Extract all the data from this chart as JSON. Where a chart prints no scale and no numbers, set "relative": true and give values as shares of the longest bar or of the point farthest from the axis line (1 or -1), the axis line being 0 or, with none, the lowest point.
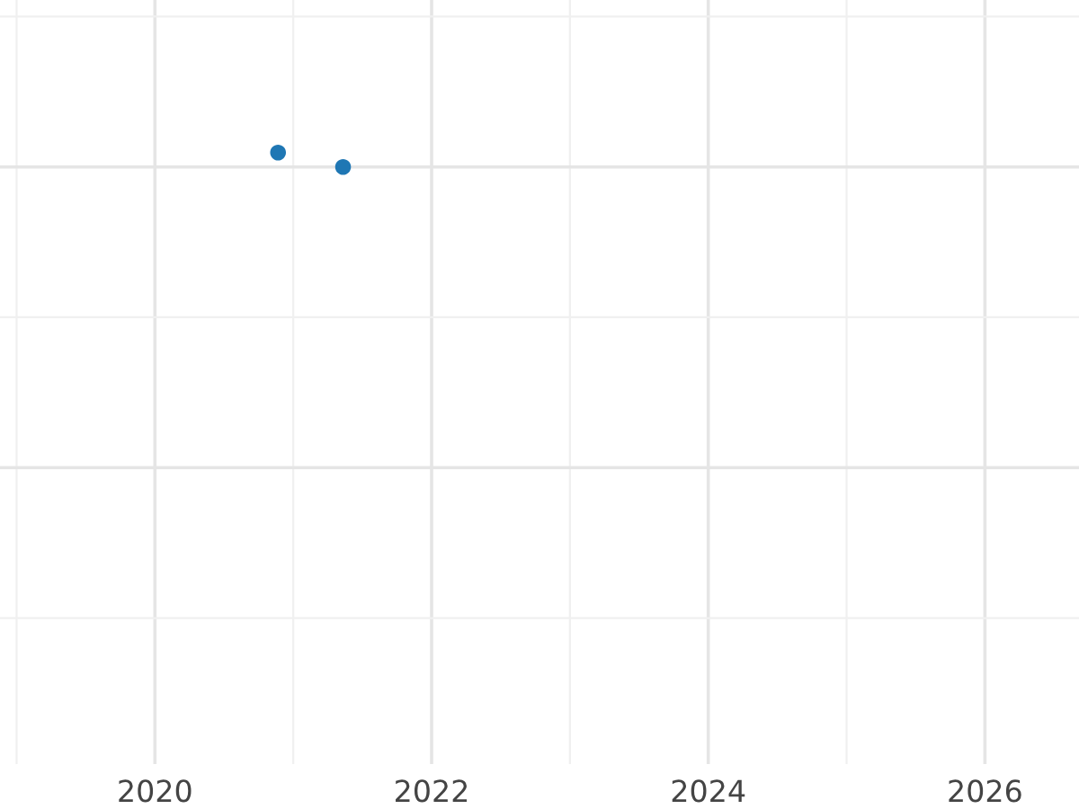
{
  "chart_data": {
    "type": "scatter",
    "x": [
      2020.89,
      2021.36
    ],
    "values": [
      1,
      0
    ],
    "relative": true,
    "color": "#1f77b4",
    "xlim": [
      2018.88,
      2026.68
    ],
    "xticks": [
      2020,
      2022,
      2024,
      2026
    ],
    "grid": true,
    "marker": "circle"
  }
}
